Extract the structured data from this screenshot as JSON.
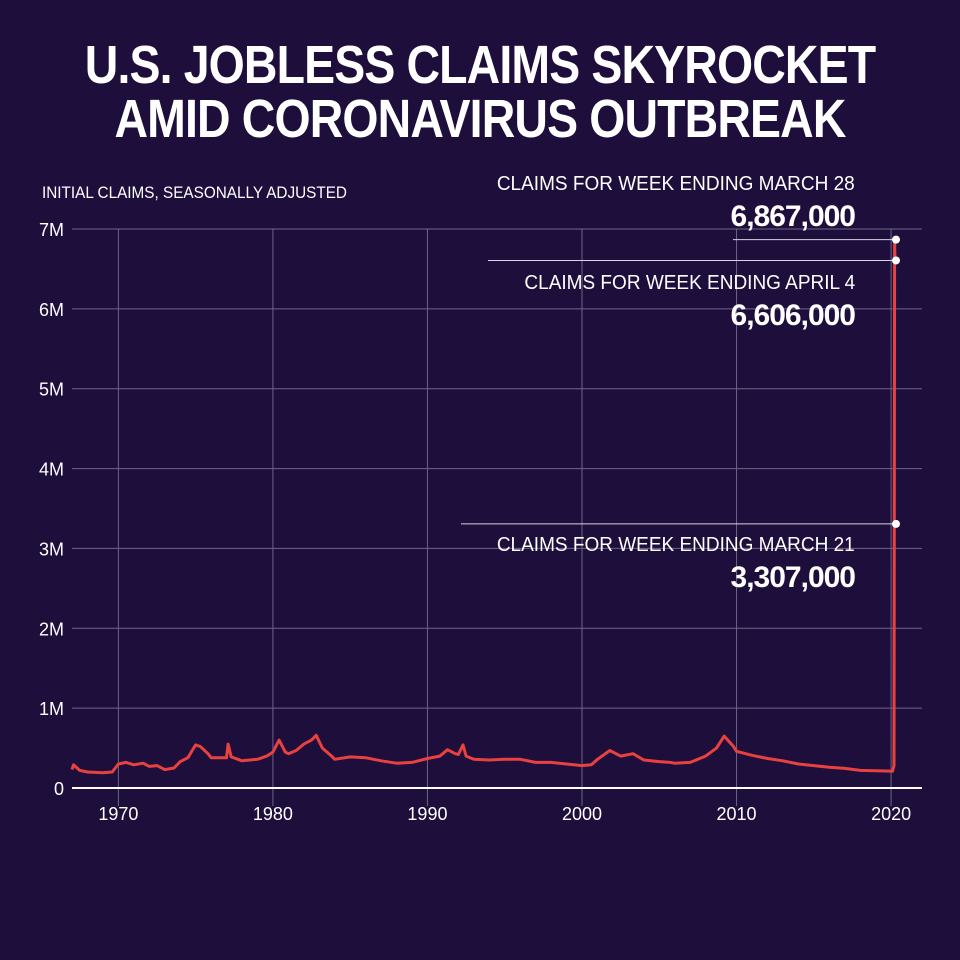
{
  "title_line1": "U.S. JOBLESS CLAIMS SKYROCKET",
  "title_line2": "AMID CORONAVIRUS OUTBREAK",
  "chart_data": {
    "type": "line",
    "title": "U.S. JOBLESS CLAIMS SKYROCKET AMID CORONAVIRUS OUTBREAK",
    "ylabel": "INITIAL CLAIMS, SEASONALLY ADJUSTED",
    "xlabel": "",
    "xlim": [
      1967,
      2022
    ],
    "ylim": [
      0,
      7000000
    ],
    "grid": true,
    "x_ticks": [
      1970,
      1980,
      1990,
      2000,
      2010,
      2020
    ],
    "x_tick_labels": [
      "1970",
      "1980",
      "1990",
      "2000",
      "2010",
      "2020"
    ],
    "y_ticks": [
      0,
      1000000,
      2000000,
      3000000,
      4000000,
      5000000,
      6000000,
      7000000
    ],
    "y_tick_labels": [
      "0",
      "1M",
      "2M",
      "3M",
      "4M",
      "5M",
      "6M",
      "7M"
    ],
    "series": [
      {
        "name": "Initial claims",
        "color": "#e8413f",
        "x": [
          1967,
          1967.1,
          1967.5,
          1968,
          1969,
          1969.6,
          1970,
          1970.5,
          1971,
          1971.6,
          1972,
          1972.5,
          1973,
          1973.6,
          1974,
          1974.5,
          1975,
          1975.3,
          1975.8,
          1976,
          1977,
          1977.1,
          1977.3,
          1978,
          1979,
          1979.6,
          1980,
          1980.4,
          1980.8,
          1981,
          1981.5,
          1982,
          1982.5,
          1982.8,
          1983.2,
          1983.8,
          1984,
          1985,
          1986,
          1987,
          1988,
          1989,
          1990,
          1990.8,
          1991.3,
          1991.8,
          1992,
          1992.3,
          1992.5,
          1993,
          1994,
          1995,
          1996,
          1997,
          1998,
          1999,
          2000,
          2000.6,
          2001,
          2001.8,
          2002.5,
          2003.3,
          2004,
          2005,
          2005.7,
          2006,
          2007,
          2008,
          2008.7,
          2009.2,
          2009.8,
          2010,
          2011,
          2012,
          2013,
          2014,
          2015,
          2016,
          2017,
          2018,
          2019,
          2020.1,
          2020.19,
          2020.21,
          2020.23,
          2020.25
        ],
        "y": [
          230000,
          290000,
          220000,
          200000,
          190000,
          200000,
          300000,
          320000,
          290000,
          310000,
          270000,
          280000,
          230000,
          250000,
          330000,
          380000,
          540000,
          520000,
          430000,
          380000,
          380000,
          550000,
          390000,
          340000,
          360000,
          400000,
          450000,
          600000,
          450000,
          430000,
          470000,
          550000,
          600000,
          660000,
          500000,
          400000,
          360000,
          390000,
          380000,
          340000,
          310000,
          320000,
          370000,
          400000,
          480000,
          430000,
          420000,
          540000,
          400000,
          360000,
          350000,
          360000,
          360000,
          320000,
          320000,
          300000,
          280000,
          290000,
          360000,
          470000,
          400000,
          430000,
          350000,
          330000,
          320000,
          310000,
          320000,
          400000,
          500000,
          650000,
          520000,
          460000,
          410000,
          370000,
          340000,
          300000,
          280000,
          260000,
          245000,
          220000,
          215000,
          210000,
          282000,
          3307000,
          6867000,
          6606000
        ]
      }
    ],
    "annotations": [
      {
        "label": "CLAIMS FOR WEEK ENDING MARCH 28",
        "value_text": "6,867,000",
        "value": 6867000
      },
      {
        "label": "CLAIMS FOR WEEK ENDING APRIL 4",
        "value_text": "6,606,000",
        "value": 6606000
      },
      {
        "label": "CLAIMS FOR WEEK ENDING MARCH 21",
        "value_text": "3,307,000",
        "value": 3307000
      }
    ]
  },
  "colors": {
    "background": "#1e0e3b",
    "line": "#e8413f",
    "grid": "#6e6488",
    "text": "#ffffff"
  }
}
